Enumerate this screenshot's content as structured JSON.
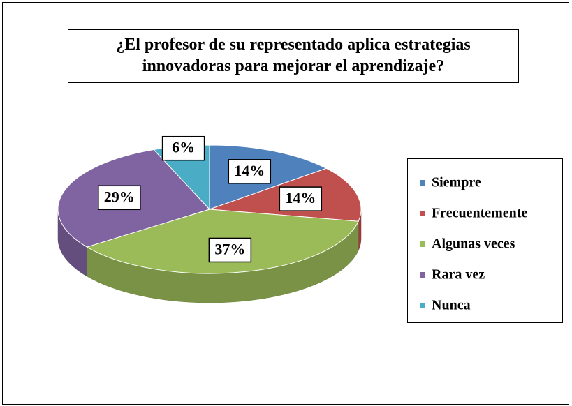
{
  "chart_data": {
    "type": "pie3d",
    "title": "¿El profesor de su representado aplica estrategias innovadoras para mejorar el aprendizaje?",
    "categories": [
      "Siempre",
      "Frecuentemente",
      "Algunas veces",
      "Rara vez",
      "Nunca"
    ],
    "values": [
      14,
      14,
      37,
      29,
      6
    ],
    "value_labels": [
      "14%",
      "14%",
      "37%",
      "29%",
      "6%"
    ],
    "colors": [
      "#4f81bd",
      "#c0504d",
      "#9bbb59",
      "#8064a2",
      "#4bacc6"
    ],
    "legend": "right"
  }
}
